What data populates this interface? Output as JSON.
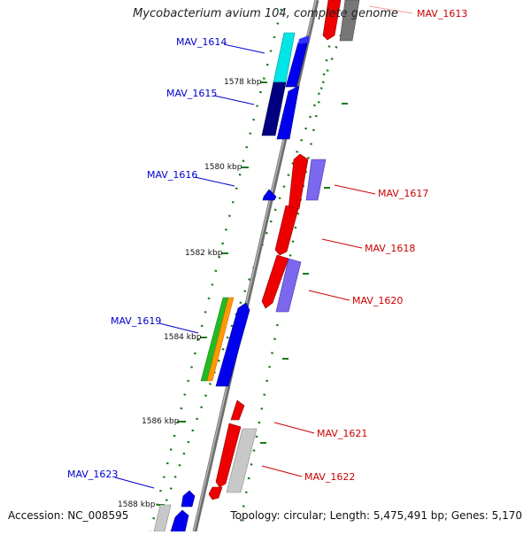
{
  "title": "Mycobacterium avium 104, complete genome",
  "footer": {
    "accession": "Accession: NC_008595",
    "topology": "Topology: circular; Length: 5,475,491 bp; Genes: 5,170"
  },
  "colors": {
    "backbone": "#888888",
    "tick": "#1a7a1a",
    "label_forward": "#0000cc",
    "label_reverse": "#cc0000",
    "blue": "#0000ee",
    "navy": "#000080",
    "cyan": "#00e5e5",
    "red": "#ee0000",
    "purple": "#7b68ee",
    "grey": "#c8c8c8",
    "darkgrey": "#777777",
    "green": "#22bb22",
    "orange": "#ff9900"
  },
  "kbp_labels": [
    "1578 kbp",
    "1580 kbp",
    "1582 kbp",
    "1584 kbp",
    "1586 kbp",
    "1588 kbp"
  ],
  "genes": {
    "forward": [
      "MAV_1614",
      "MAV_1615",
      "MAV_1616",
      "MAV_1619",
      "MAV_1623"
    ],
    "reverse": [
      "MAV_1613",
      "MAV_1617",
      "MAV_1618",
      "MAV_1620",
      "MAV_1621",
      "MAV_1622"
    ]
  }
}
